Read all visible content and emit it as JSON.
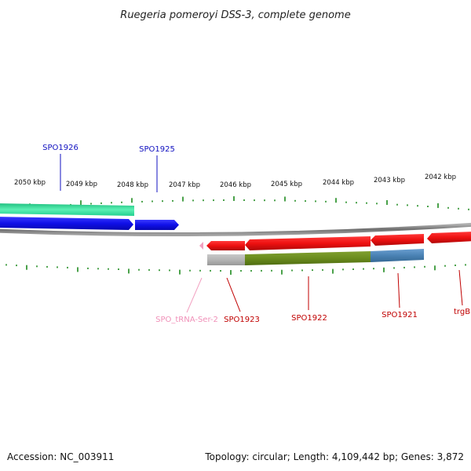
{
  "title": "Ruegeria pomeroyi DSS-3, complete genome",
  "footer": {
    "accession": "Accession: NC_003911",
    "summary": "Topology: circular; Length: 4,109,442 bp; Genes: 3,872"
  },
  "colors": {
    "forward": "#1010e8",
    "reverse": "#ee1111",
    "rna": "#f2a0c0",
    "ticks": "#1e8a1e",
    "backbone": "#8c8c8c",
    "cog_teal": "#2ee8a0",
    "cog_olive": "#6b8c1e",
    "cog_blue": "#4a82b4",
    "cog_gray": "#b4b4b4"
  },
  "scale_labels": [
    {
      "id": "2050",
      "text": "2050 kbp"
    },
    {
      "id": "2049",
      "text": "2049 kbp"
    },
    {
      "id": "2048",
      "text": "2048 kbp"
    },
    {
      "id": "2047",
      "text": "2047 kbp"
    },
    {
      "id": "2046",
      "text": "2046 kbp"
    },
    {
      "id": "2045",
      "text": "2045 kbp"
    },
    {
      "id": "2044",
      "text": "2044 kbp"
    },
    {
      "id": "2043",
      "text": "2043 kbp"
    },
    {
      "id": "2042",
      "text": "2042 kbp"
    }
  ],
  "gene_labels": [
    {
      "id": "spo1926",
      "text": "SPO1926",
      "strand": "forward"
    },
    {
      "id": "spo1925",
      "text": "SPO1925",
      "strand": "forward"
    },
    {
      "id": "spo_trna_ser_2",
      "text": "SPO_tRNA-Ser-2",
      "strand": "rna"
    },
    {
      "id": "spo1923",
      "text": "SPO1923",
      "strand": "reverse"
    },
    {
      "id": "spo1922",
      "text": "SPO1922",
      "strand": "reverse"
    },
    {
      "id": "spo1921",
      "text": "SPO1921",
      "strand": "reverse"
    },
    {
      "id": "trgb",
      "text": "trgB",
      "strand": "reverse"
    }
  ]
}
